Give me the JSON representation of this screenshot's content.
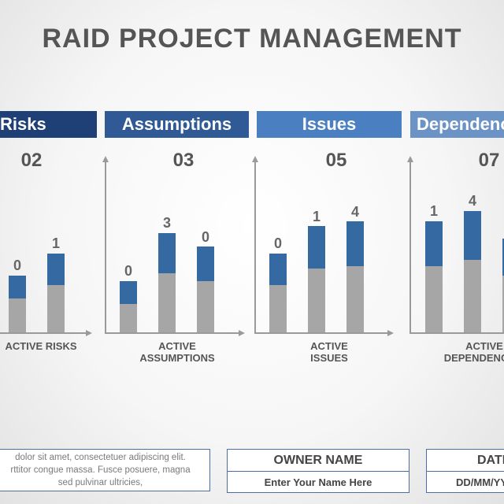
{
  "title": "RAID PROJECT MANAGEMENT",
  "categories": [
    {
      "header": "Risks",
      "total": "02",
      "caption_l1": "ACTIVE RISKS",
      "caption_l2": ""
    },
    {
      "header": "Assumptions",
      "total": "03",
      "caption_l1": "ACTIVE",
      "caption_l2": "ASSUMPTIONS"
    },
    {
      "header": "Issues",
      "total": "05",
      "caption_l1": "ACTIVE",
      "caption_l2": "ISSUES"
    },
    {
      "header": "Dependencies",
      "total": "07",
      "caption_l1": "ACTIVE",
      "caption_l2": "DEPENDENCIES"
    }
  ],
  "colors": {
    "risks": "#1f3f77",
    "assumptions": "#2f5a95",
    "issues": "#4a7fc1",
    "dependencies": "#6c93c6",
    "bar_top": "#346aa1",
    "bar_base": "#a6a6a6"
  },
  "chart_data": [
    {
      "type": "bar",
      "title": "Risks",
      "bar_labels": [
        "0",
        "1"
      ]
    },
    {
      "type": "bar",
      "title": "Assumptions",
      "bar_labels": [
        "0",
        "3",
        "0"
      ]
    },
    {
      "type": "bar",
      "title": "Issues",
      "bar_labels": [
        "0",
        "1",
        "4"
      ]
    },
    {
      "type": "bar",
      "title": "Dependencies",
      "bar_labels": [
        "1",
        "4"
      ]
    }
  ],
  "note": {
    "line1": "dolor sit amet, consectetuer adipiscing elit.",
    "line2": "rttitor congue massa. Fusce posuere, magna",
    "line3": "sed pulvinar ultricies,"
  },
  "owner": {
    "label": "OWNER NAME",
    "placeholder": "Enter Your Name Here"
  },
  "date": {
    "label": "DATE",
    "placeholder": "DD/MM/YYYY"
  }
}
